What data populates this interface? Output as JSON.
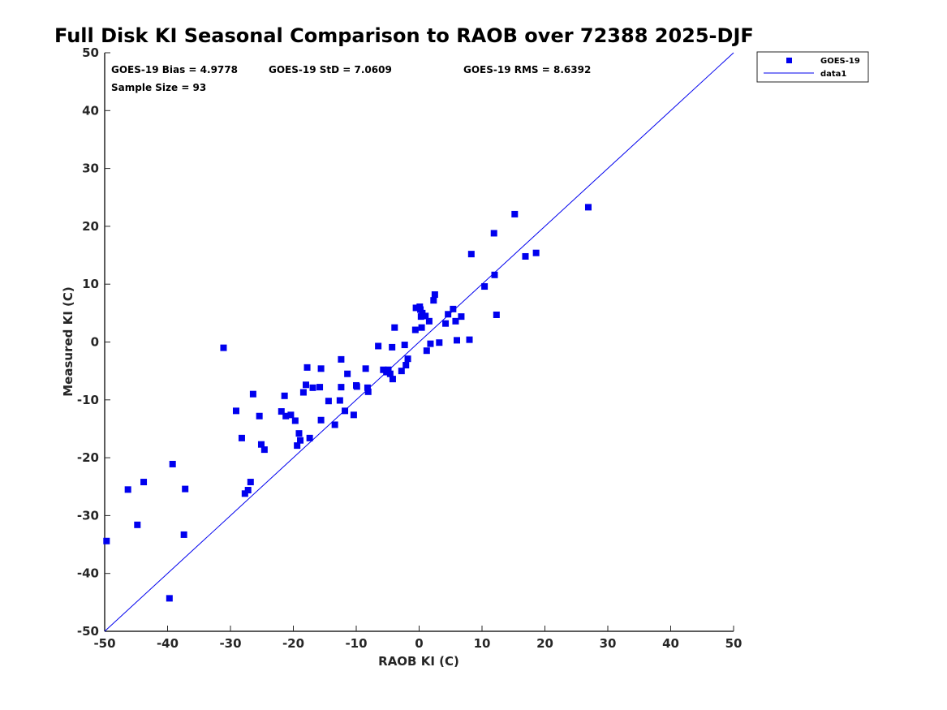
{
  "chart_data": {
    "type": "scatter",
    "title": "Full Disk KI Seasonal Comparison to RAOB over 72388 2025-DJF",
    "xlabel": "RAOB KI (C)",
    "ylabel": "Measured KI (C)",
    "xlim": [
      -50,
      50
    ],
    "ylim": [
      -50,
      50
    ],
    "xticks": [
      "-50",
      "-40",
      "-30",
      "-20",
      "-10",
      "0",
      "10",
      "20",
      "30",
      "40",
      "50"
    ],
    "yticks": [
      "-50",
      "-40",
      "-30",
      "-20",
      "-10",
      "0",
      "10",
      "20",
      "30",
      "40",
      "50"
    ],
    "grid": false,
    "legend_position": "top-right-outside",
    "colors": {
      "series": "#0000ee",
      "line": "#0000ee",
      "axis": "#262626"
    },
    "stats": {
      "bias": "GOES-19 Bias = 4.9778",
      "std": "GOES-19 StD = 7.0609",
      "rms": "GOES-19 RMS = 8.6392",
      "sample": "Sample Size = 93"
    },
    "series": [
      {
        "name": "GOES-19",
        "marker": "square",
        "points": [
          [
            -49.7,
            -34.4
          ],
          [
            -46.3,
            -25.5
          ],
          [
            -44.8,
            -31.6
          ],
          [
            -43.8,
            -24.2
          ],
          [
            -39.7,
            -44.3
          ],
          [
            -39.2,
            -21.1
          ],
          [
            -37.4,
            -33.3
          ],
          [
            -37.2,
            -25.4
          ],
          [
            -31.1,
            -1.0
          ],
          [
            -29.1,
            -11.9
          ],
          [
            -28.2,
            -16.6
          ],
          [
            -27.7,
            -26.2
          ],
          [
            -27.2,
            -25.6
          ],
          [
            -26.8,
            -24.2
          ],
          [
            -26.4,
            -9.0
          ],
          [
            -25.4,
            -12.8
          ],
          [
            -25.1,
            -17.7
          ],
          [
            -24.6,
            -18.6
          ],
          [
            -21.9,
            -12.0
          ],
          [
            -21.4,
            -9.3
          ],
          [
            -21.2,
            -12.8
          ],
          [
            -20.4,
            -12.6
          ],
          [
            -19.7,
            -13.6
          ],
          [
            -19.4,
            -17.9
          ],
          [
            -19.1,
            -15.8
          ],
          [
            -18.9,
            -17.0
          ],
          [
            -18.4,
            -8.7
          ],
          [
            -18.0,
            -7.4
          ],
          [
            -17.8,
            -4.4
          ],
          [
            -17.4,
            -16.6
          ],
          [
            -16.9,
            -7.9
          ],
          [
            -15.8,
            -7.8
          ],
          [
            -15.6,
            -4.6
          ],
          [
            -15.6,
            -13.5
          ],
          [
            -14.4,
            -10.2
          ],
          [
            -13.4,
            -14.3
          ],
          [
            -12.6,
            -10.1
          ],
          [
            -12.4,
            -7.8
          ],
          [
            -12.4,
            -3.0
          ],
          [
            -11.8,
            -11.9
          ],
          [
            -11.4,
            -5.5
          ],
          [
            -10.4,
            -12.6
          ],
          [
            -10.0,
            -7.5
          ],
          [
            -9.9,
            -7.7
          ],
          [
            -8.5,
            -4.6
          ],
          [
            -8.2,
            -7.9
          ],
          [
            -8.1,
            -8.6
          ],
          [
            -6.5,
            -0.7
          ],
          [
            -5.7,
            -4.8
          ],
          [
            -5.2,
            -5.2
          ],
          [
            -4.9,
            -4.8
          ],
          [
            -4.6,
            -5.5
          ],
          [
            -4.3,
            -0.9
          ],
          [
            -4.2,
            -6.4
          ],
          [
            -3.9,
            2.5
          ],
          [
            -2.8,
            -5.0
          ],
          [
            -2.3,
            -0.5
          ],
          [
            -2.1,
            -4.0
          ],
          [
            -1.8,
            -2.9
          ],
          [
            -0.6,
            2.1
          ],
          [
            -0.5,
            5.9
          ],
          [
            0.1,
            6.1
          ],
          [
            0.2,
            5.6
          ],
          [
            0.3,
            4.4
          ],
          [
            0.4,
            2.5
          ],
          [
            0.5,
            5.0
          ],
          [
            1.0,
            4.5
          ],
          [
            1.2,
            -1.5
          ],
          [
            1.6,
            3.6
          ],
          [
            1.8,
            -0.3
          ],
          [
            2.3,
            7.2
          ],
          [
            2.5,
            8.2
          ],
          [
            3.2,
            -0.1
          ],
          [
            4.2,
            3.2
          ],
          [
            4.6,
            4.8
          ],
          [
            5.4,
            5.7
          ],
          [
            5.8,
            3.6
          ],
          [
            6.0,
            0.3
          ],
          [
            6.7,
            4.4
          ],
          [
            8.0,
            0.4
          ],
          [
            8.3,
            15.2
          ],
          [
            10.4,
            9.6
          ],
          [
            11.9,
            18.8
          ],
          [
            12.0,
            11.6
          ],
          [
            12.3,
            4.7
          ],
          [
            15.2,
            22.1
          ],
          [
            16.9,
            14.8
          ],
          [
            18.6,
            15.4
          ],
          [
            26.9,
            23.3
          ]
        ]
      },
      {
        "name": "data1",
        "type": "line",
        "points": [
          [
            -50,
            -50
          ],
          [
            50,
            50
          ]
        ]
      }
    ]
  }
}
